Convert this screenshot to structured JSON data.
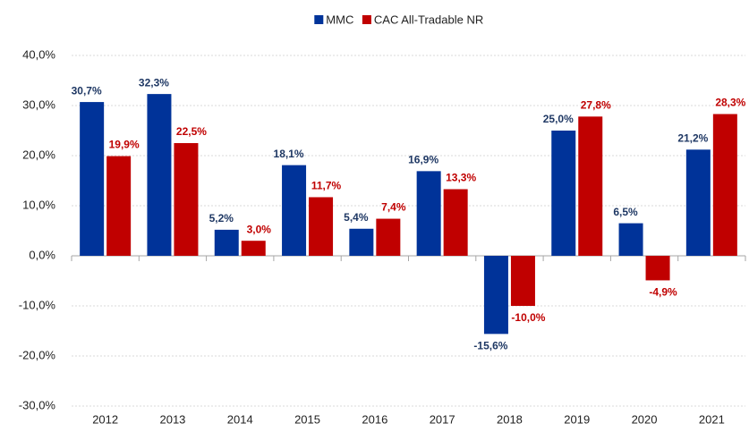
{
  "chart_data": {
    "type": "bar",
    "categories": [
      "2012",
      "2013",
      "2014",
      "2015",
      "2016",
      "2017",
      "2018",
      "2019",
      "2020",
      "2021"
    ],
    "series": [
      {
        "name": "MMC",
        "color": "#003399",
        "label_color": "#1f3864",
        "values": [
          30.7,
          32.3,
          5.2,
          18.1,
          5.4,
          16.9,
          -15.6,
          25.0,
          6.5,
          21.2
        ],
        "value_labels": [
          "30,7%",
          "32,3%",
          "5,2%",
          "18,1%",
          "5,4%",
          "16,9%",
          "-15,6%",
          "25,0%",
          "6,5%",
          "21,2%"
        ]
      },
      {
        "name": "CAC All-Tradable NR",
        "color": "#c00000",
        "label_color": "#c00000",
        "values": [
          19.9,
          22.5,
          3.0,
          11.7,
          7.4,
          13.3,
          -10.0,
          27.8,
          -4.9,
          28.3
        ],
        "value_labels": [
          "19,9%",
          "22,5%",
          "3,0%",
          "11,7%",
          "7,4%",
          "13,3%",
          "-10,0%",
          "27,8%",
          "-4,9%",
          "28,3%"
        ]
      }
    ],
    "ylim": [
      -30,
      40
    ],
    "yticks": [
      {
        "value": -30,
        "label": "-30,0%"
      },
      {
        "value": -20,
        "label": "-20,0%"
      },
      {
        "value": -10,
        "label": "-10,0%"
      },
      {
        "value": 0,
        "label": "0,0%"
      },
      {
        "value": 10,
        "label": "10,0%"
      },
      {
        "value": 20,
        "label": "20,0%"
      },
      {
        "value": 30,
        "label": "30,0%"
      },
      {
        "value": 40,
        "label": "40,0%"
      }
    ],
    "grid": true,
    "legend": "top"
  }
}
